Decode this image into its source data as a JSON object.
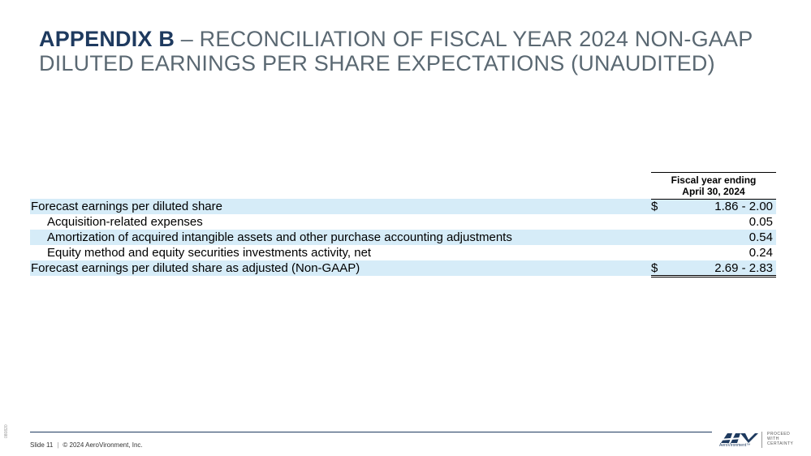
{
  "title": {
    "strong": "APPENDIX B",
    "rest": " – RECONCILIATION OF FISCAL YEAR 2024 NON-GAAP DILUTED EARNINGS PER SHARE EXPECTATIONS (UNAUDITED)"
  },
  "table": {
    "header_line1": "Fiscal year ending",
    "header_line2": "April 30, 2024",
    "rows": [
      {
        "label": "Forecast earnings per diluted share",
        "dollar": "$",
        "value": "1.86 - 2.00"
      },
      {
        "label": "Acquisition-related expenses",
        "dollar": "",
        "value": "0.05"
      },
      {
        "label": "Amortization of acquired intangible assets and other purchase accounting adjustments",
        "dollar": "",
        "value": "0.54"
      },
      {
        "label": "Equity method and equity securities investments activity, net",
        "dollar": "",
        "value": "0.24"
      },
      {
        "label": "Forecast earnings per diluted share as adjusted (Non-GAAP)",
        "dollar": "$",
        "value": "2.69 - 2.83"
      }
    ]
  },
  "footer": {
    "slide": "Slide 11",
    "separator": "|",
    "copyright": "© 2024 AeroVironment, Inc."
  },
  "side_code": "080820",
  "logo": {
    "mark": "AV",
    "name": "AeroVironment™",
    "tagline_1": "PROCEED",
    "tagline_2": "WITH",
    "tagline_3": "CERTAINTY"
  },
  "colors": {
    "title_strong": "#1e3a5f",
    "title_rest": "#5a6872",
    "row_shade": "#d6ecf8"
  }
}
